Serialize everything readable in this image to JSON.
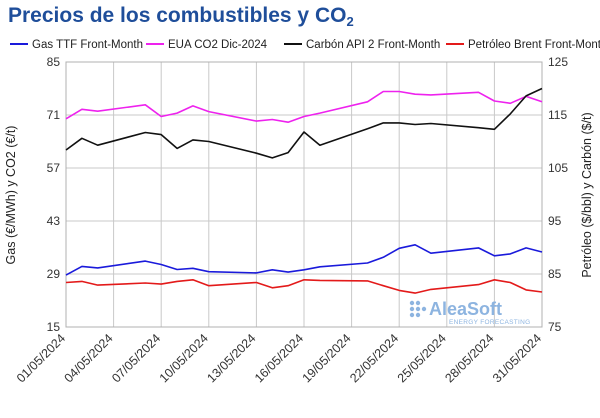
{
  "title": "Precios de los combustibles y CO",
  "title_sub": "2",
  "watermark": {
    "brand": "AleaSoft",
    "tagline": "ENERGY FORECASTING"
  },
  "colors": {
    "gas": "#1a1adb",
    "co2": "#ee22ee",
    "coal": "#111111",
    "brent": "#e31a1a",
    "grid": "#c9c9c9",
    "title": "#1f4e9a"
  },
  "chart_data": {
    "type": "line",
    "title": "Precios de los combustibles y CO2",
    "ylabel_left": "Gas (€/MWh) y CO2 (€/t)",
    "ylabel_right": "Petróleo ($/bbl) y Carbón ($/t)",
    "ylim_left": [
      15,
      85
    ],
    "ylim_right": [
      75,
      125
    ],
    "yticks_left": [
      15,
      29,
      43,
      57,
      71,
      85
    ],
    "yticks_right": [
      75,
      85,
      95,
      105,
      115,
      125
    ],
    "x_range": [
      "01/05/2024",
      "31/05/2024"
    ],
    "xticks": [
      "01/05/2024",
      "04/05/2024",
      "07/05/2024",
      "10/05/2024",
      "13/05/2024",
      "16/05/2024",
      "19/05/2024",
      "22/05/2024",
      "25/05/2024",
      "28/05/2024",
      "31/05/2024"
    ],
    "grid": true,
    "legend_position": "top",
    "series": [
      {
        "name": "Gas TTF Front-Month",
        "axis": "left",
        "color_key": "gas",
        "x": [
          "01/05/2024",
          "02/05/2024",
          "03/05/2024",
          "06/05/2024",
          "07/05/2024",
          "08/05/2024",
          "09/05/2024",
          "10/05/2024",
          "13/05/2024",
          "14/05/2024",
          "15/05/2024",
          "16/05/2024",
          "17/05/2024",
          "20/05/2024",
          "21/05/2024",
          "22/05/2024",
          "23/05/2024",
          "24/05/2024",
          "27/05/2024",
          "28/05/2024",
          "29/05/2024",
          "30/05/2024",
          "31/05/2024"
        ],
        "y": [
          28.7,
          31.0,
          30.6,
          32.4,
          31.5,
          30.2,
          30.5,
          29.6,
          29.3,
          30.1,
          29.5,
          30.1,
          30.9,
          31.9,
          33.4,
          35.8,
          36.7,
          34.5,
          35.9,
          33.8,
          34.3,
          35.9,
          34.8
        ]
      },
      {
        "name": "EUA CO2 Dic-2024",
        "axis": "left",
        "color_key": "co2",
        "x": [
          "01/05/2024",
          "02/05/2024",
          "03/05/2024",
          "06/05/2024",
          "07/05/2024",
          "08/05/2024",
          "09/05/2024",
          "10/05/2024",
          "13/05/2024",
          "14/05/2024",
          "15/05/2024",
          "16/05/2024",
          "17/05/2024",
          "20/05/2024",
          "21/05/2024",
          "22/05/2024",
          "23/05/2024",
          "24/05/2024",
          "27/05/2024",
          "28/05/2024",
          "29/05/2024",
          "30/05/2024",
          "31/05/2024"
        ],
        "y": [
          70.0,
          72.5,
          72.0,
          73.7,
          70.6,
          71.5,
          73.4,
          71.9,
          69.4,
          69.8,
          69.1,
          70.6,
          71.5,
          74.5,
          77.2,
          77.2,
          76.5,
          76.3,
          77.0,
          74.7,
          74.1,
          75.9,
          74.5
        ]
      },
      {
        "name": "Carbón API 2 Front-Month",
        "axis": "right",
        "color_key": "coal",
        "x": [
          "01/05/2024",
          "02/05/2024",
          "03/05/2024",
          "06/05/2024",
          "07/05/2024",
          "08/05/2024",
          "09/05/2024",
          "10/05/2024",
          "13/05/2024",
          "14/05/2024",
          "15/05/2024",
          "16/05/2024",
          "17/05/2024",
          "20/05/2024",
          "21/05/2024",
          "22/05/2024",
          "23/05/2024",
          "24/05/2024",
          "27/05/2024",
          "28/05/2024",
          "29/05/2024",
          "30/05/2024",
          "31/05/2024"
        ],
        "y": [
          108.4,
          110.6,
          109.3,
          111.7,
          111.3,
          108.7,
          110.3,
          110.0,
          107.8,
          106.9,
          107.9,
          111.8,
          109.3,
          112.4,
          113.5,
          113.5,
          113.2,
          113.4,
          112.6,
          112.3,
          115.2,
          118.6,
          120.0
        ]
      },
      {
        "name": "Petróleo Brent Front-Month",
        "axis": "right",
        "color_key": "brent",
        "x": [
          "01/05/2024",
          "02/05/2024",
          "03/05/2024",
          "06/05/2024",
          "07/05/2024",
          "08/05/2024",
          "09/05/2024",
          "10/05/2024",
          "13/05/2024",
          "14/05/2024",
          "15/05/2024",
          "16/05/2024",
          "17/05/2024",
          "20/05/2024",
          "21/05/2024",
          "22/05/2024",
          "23/05/2024",
          "24/05/2024",
          "27/05/2024",
          "28/05/2024",
          "29/05/2024",
          "30/05/2024",
          "31/05/2024"
        ],
        "y": [
          83.4,
          83.6,
          82.9,
          83.3,
          83.1,
          83.6,
          83.9,
          82.8,
          83.4,
          82.4,
          82.8,
          83.9,
          83.8,
          83.7,
          82.8,
          81.9,
          81.4,
          82.1,
          83.0,
          83.9,
          83.4,
          82.0,
          81.6
        ]
      }
    ]
  }
}
